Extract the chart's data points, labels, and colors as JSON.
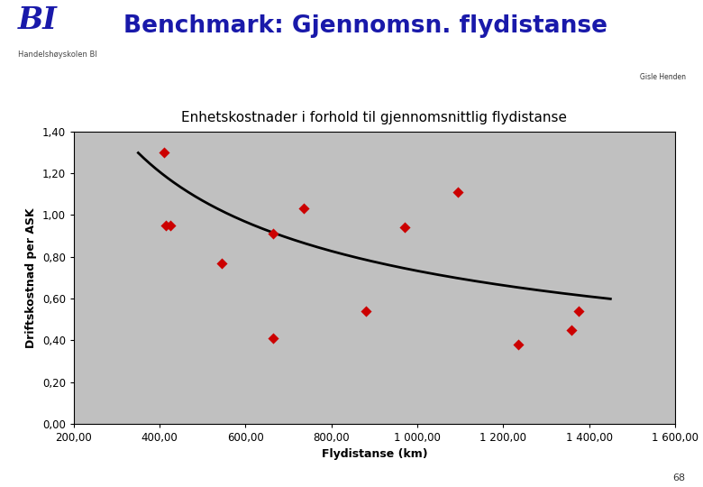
{
  "title_main": "Benchmark: Gjennomsn. flydistanse",
  "chart_title": "Enhetskostnader i forhold til gjennomsnittlig flydistanse",
  "xlabel": "Flydistanse (km)",
  "ylabel": "Driftskostnad per ASK",
  "author": "Gisle Henden",
  "page_num": "68",
  "scatter_x": [
    410,
    425,
    415,
    545,
    665,
    665,
    735,
    880,
    970,
    1095,
    1235,
    1360,
    1375
  ],
  "scatter_y": [
    1.3,
    0.95,
    0.95,
    0.77,
    0.91,
    0.41,
    1.03,
    0.54,
    0.94,
    1.11,
    0.38,
    0.45,
    0.54
  ],
  "scatter_color": "#cc0000",
  "curve_x_start": 350,
  "curve_x_end": 1450,
  "curve_a": 31.6,
  "curve_b": -0.545,
  "xlim": [
    200,
    1600
  ],
  "ylim": [
    0.0,
    1.4
  ],
  "xticks": [
    200,
    400,
    600,
    800,
    1000,
    1200,
    1400,
    1600
  ],
  "yticks": [
    0.0,
    0.2,
    0.4,
    0.6,
    0.8,
    1.0,
    1.2,
    1.4
  ],
  "plot_bg_color": "#c0c0c0",
  "fig_bg_color": "#ffffff",
  "header_bar_color": "#1919aa",
  "title_color": "#1919aa",
  "bottom_bar_color": "#1919aa",
  "title_fontsize": 19,
  "chart_title_fontsize": 11,
  "bi_logo_color": "#1919aa"
}
